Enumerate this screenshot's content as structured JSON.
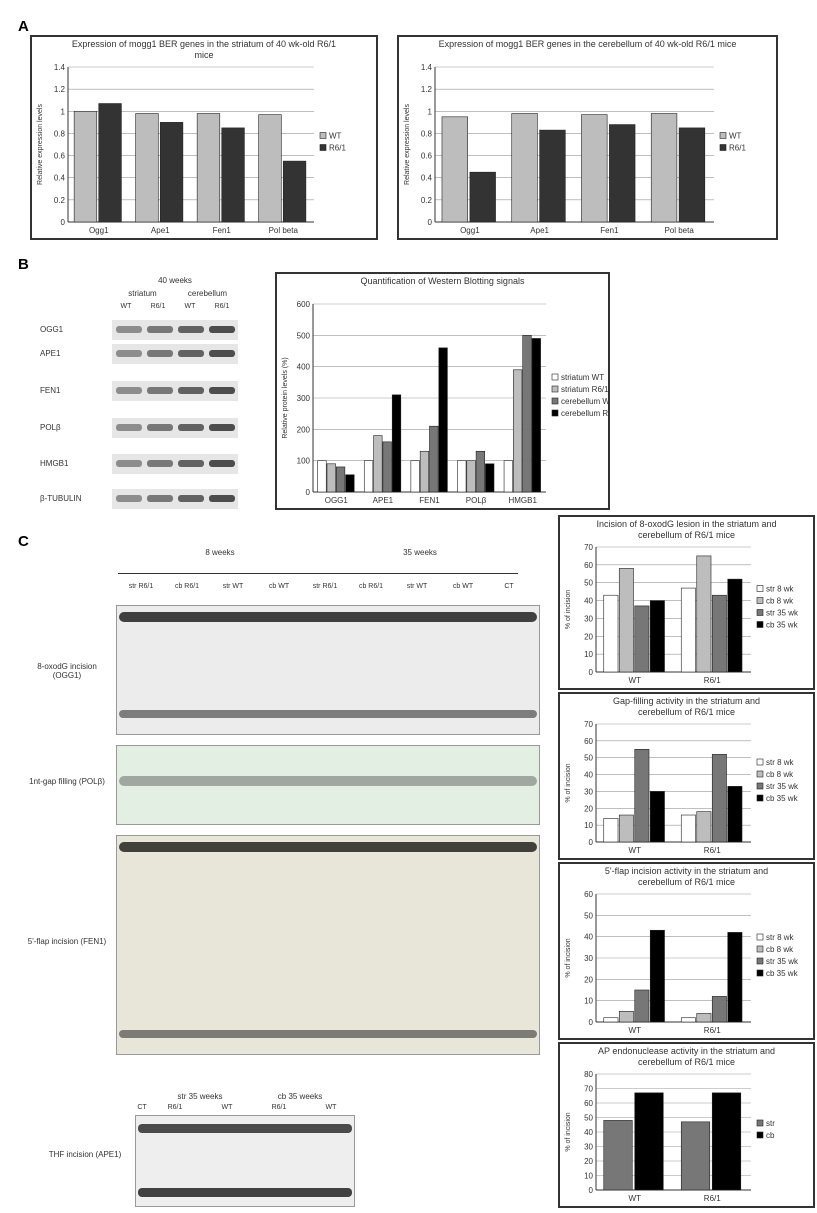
{
  "panels": [
    "A",
    "B",
    "C"
  ],
  "western": {
    "header": "40 weeks",
    "tissues": [
      "striatum",
      "cerebellum"
    ],
    "lanes": [
      "WT",
      "R6/1",
      "WT",
      "R6/1"
    ],
    "rows": [
      "OGG1",
      "APE1",
      "FEN1",
      "POLβ",
      "HMGB1",
      "β-TUBULIN"
    ]
  },
  "assays": {
    "ages": [
      "8 weeks",
      "35 weeks"
    ],
    "lanes": [
      "str R6/1",
      "cb R6/1",
      "str WT",
      "cb WT",
      "str R6/1",
      "cb R6/1",
      "str WT",
      "cb WT",
      "CT"
    ],
    "gels": [
      "8-oxodG incision (OGG1)",
      "1nt-gap filling (POLβ)",
      "5'-flap incision (FEN1)"
    ],
    "ape": {
      "ages": [
        "str 35 weeks",
        "cb 35 weeks"
      ],
      "lanes": [
        "CT",
        "R6/1",
        "WT",
        "R6/1",
        "WT"
      ],
      "label": "THF incision (APE1)"
    }
  },
  "chart_data": [
    {
      "type": "bar",
      "title": "Expression of mogg1 BER genes in the striatum of 40 wk-old R6/1 mice",
      "ylabel": "Relative expression levels",
      "categories": [
        "Ogg1",
        "Ape1",
        "Fen1",
        "Pol beta"
      ],
      "series": [
        {
          "name": "WT",
          "color": "#bdbdbd",
          "values": [
            1.0,
            0.98,
            0.98,
            0.97
          ]
        },
        {
          "name": "R6/1",
          "color": "#333333",
          "values": [
            1.07,
            0.9,
            0.85,
            0.55
          ]
        }
      ],
      "ylim": [
        0,
        1.4
      ],
      "yticks": [
        0,
        0.2,
        0.4,
        0.6,
        0.8,
        1,
        1.2,
        1.4
      ]
    },
    {
      "type": "bar",
      "title": "Expression of mogg1 BER genes in the cerebellum of 40 wk-old R6/1 mice",
      "ylabel": "Relative expression levels",
      "categories": [
        "Ogg1",
        "Ape1",
        "Fen1",
        "Pol beta"
      ],
      "series": [
        {
          "name": "WT",
          "color": "#bdbdbd",
          "values": [
            0.95,
            0.98,
            0.97,
            0.98
          ]
        },
        {
          "name": "R6/1",
          "color": "#333333",
          "values": [
            0.45,
            0.83,
            0.88,
            0.85
          ]
        }
      ],
      "ylim": [
        0,
        1.4
      ],
      "yticks": [
        0,
        0.2,
        0.4,
        0.6,
        0.8,
        1,
        1.2,
        1.4
      ]
    },
    {
      "type": "bar",
      "title": "Quantification of Western Blotting signals",
      "ylabel": "Relative protein levels (%)",
      "categories": [
        "OGG1",
        "APE1",
        "FEN1",
        "POLβ",
        "HMGB1"
      ],
      "series": [
        {
          "name": "striatum WT",
          "color": "#ffffff",
          "values": [
            100,
            100,
            100,
            100,
            100
          ]
        },
        {
          "name": "striatum R6/1",
          "color": "#bdbdbd",
          "values": [
            90,
            180,
            130,
            100,
            390
          ]
        },
        {
          "name": "cerebellum WT",
          "color": "#777777",
          "values": [
            80,
            160,
            210,
            130,
            500
          ]
        },
        {
          "name": "cerebellum R6/1",
          "color": "#000000",
          "values": [
            55,
            310,
            460,
            90,
            490
          ]
        }
      ],
      "ylim": [
        0,
        600
      ],
      "yticks": [
        0,
        100,
        200,
        300,
        400,
        500,
        600
      ]
    },
    {
      "type": "bar",
      "title": "Incision of 8-oxodG lesion in the striatum and cerebellum of R6/1 mice",
      "ylabel": "% of incision",
      "categories": [
        "WT",
        "R6/1"
      ],
      "series": [
        {
          "name": "str 8 wk",
          "color": "#ffffff",
          "values": [
            43,
            47
          ]
        },
        {
          "name": "cb 8 wk",
          "color": "#bdbdbd",
          "values": [
            58,
            65
          ]
        },
        {
          "name": "str 35 wk",
          "color": "#777777",
          "values": [
            37,
            43
          ]
        },
        {
          "name": "cb 35 wk",
          "color": "#000000",
          "values": [
            40,
            52
          ]
        }
      ],
      "ylim": [
        0,
        70
      ],
      "yticks": [
        0,
        10,
        20,
        30,
        40,
        50,
        60,
        70
      ]
    },
    {
      "type": "bar",
      "title": "Gap-filling activity in the striatum and cerebellum of R6/1 mice",
      "ylabel": "% of incision",
      "categories": [
        "WT",
        "R6/1"
      ],
      "series": [
        {
          "name": "str 8 wk",
          "color": "#ffffff",
          "values": [
            14,
            16
          ]
        },
        {
          "name": "cb 8 wk",
          "color": "#bdbdbd",
          "values": [
            16,
            18
          ]
        },
        {
          "name": "str 35 wk",
          "color": "#777777",
          "values": [
            55,
            52
          ]
        },
        {
          "name": "cb 35 wk",
          "color": "#000000",
          "values": [
            30,
            33
          ]
        }
      ],
      "ylim": [
        0,
        70
      ],
      "yticks": [
        0,
        10,
        20,
        30,
        40,
        50,
        60,
        70
      ]
    },
    {
      "type": "bar",
      "title": "5'-flap incision activity in the striatum and cerebellum of R6/1 mice",
      "ylabel": "% of incision",
      "categories": [
        "WT",
        "R6/1"
      ],
      "series": [
        {
          "name": "str 8 wk",
          "color": "#ffffff",
          "values": [
            2,
            2
          ]
        },
        {
          "name": "cb 8 wk",
          "color": "#bdbdbd",
          "values": [
            5,
            4
          ]
        },
        {
          "name": "str 35 wk",
          "color": "#777777",
          "values": [
            15,
            12
          ]
        },
        {
          "name": "cb 35 wk",
          "color": "#000000",
          "values": [
            43,
            42
          ]
        }
      ],
      "ylim": [
        0,
        60
      ],
      "yticks": [
        0,
        10,
        20,
        30,
        40,
        50,
        60
      ]
    },
    {
      "type": "bar",
      "title": "AP endonuclease activity in the striatum and cerebellum of R6/1 mice",
      "ylabel": "% of incision",
      "categories": [
        "WT",
        "R6/1"
      ],
      "series": [
        {
          "name": "str",
          "color": "#777777",
          "values": [
            48,
            47
          ]
        },
        {
          "name": "cb",
          "color": "#000000",
          "values": [
            67,
            67
          ]
        }
      ],
      "ylim": [
        0,
        80
      ],
      "yticks": [
        0,
        10,
        20,
        30,
        40,
        50,
        60,
        70,
        80
      ]
    }
  ]
}
